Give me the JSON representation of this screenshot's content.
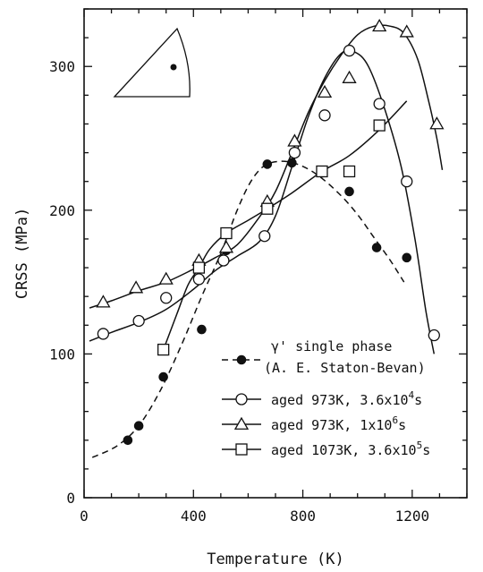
{
  "chart_data": {
    "type": "scatter",
    "xlabel": "Temperature (K)",
    "ylabel": "CRSS (MPa)",
    "xlim": [
      0,
      1400
    ],
    "ylim": [
      0,
      340
    ],
    "x_ticks": [
      0,
      400,
      800,
      1200
    ],
    "y_ticks": [
      0,
      100,
      200,
      300
    ],
    "grid": false,
    "legend_position": "bottom-right",
    "series": [
      {
        "label_main": "γ' single phase",
        "label_sub": "(A. E. Staton-Bevan)",
        "marker": "filled-circle",
        "line": "dashed",
        "points": [
          [
            160,
            40
          ],
          [
            200,
            50
          ],
          [
            290,
            84
          ],
          [
            430,
            117
          ],
          [
            520,
            172
          ],
          [
            670,
            232
          ],
          [
            760,
            233
          ],
          [
            870,
            226
          ],
          [
            970,
            213
          ],
          [
            1070,
            174
          ],
          [
            1180,
            167
          ]
        ],
        "curve": [
          [
            30,
            28
          ],
          [
            120,
            36
          ],
          [
            200,
            50
          ],
          [
            280,
            75
          ],
          [
            360,
            108
          ],
          [
            430,
            140
          ],
          [
            500,
            170
          ],
          [
            560,
            200
          ],
          [
            610,
            220
          ],
          [
            660,
            231
          ],
          [
            720,
            234
          ],
          [
            780,
            232
          ],
          [
            850,
            225
          ],
          [
            930,
            212
          ],
          [
            1000,
            197
          ],
          [
            1060,
            181
          ],
          [
            1120,
            165
          ],
          [
            1170,
            150
          ]
        ]
      },
      {
        "label_pre": "aged 973K, 3.6x10",
        "label_exp": "4",
        "label_post": "s",
        "marker": "open-circle",
        "line": "solid",
        "points": [
          [
            70,
            114
          ],
          [
            200,
            123
          ],
          [
            300,
            139
          ],
          [
            420,
            152
          ],
          [
            510,
            165
          ],
          [
            660,
            182
          ],
          [
            770,
            240
          ],
          [
            880,
            266
          ],
          [
            970,
            311
          ],
          [
            1080,
            274
          ],
          [
            1180,
            220
          ],
          [
            1280,
            113
          ]
        ],
        "curve": [
          [
            20,
            109
          ],
          [
            100,
            115
          ],
          [
            200,
            122
          ],
          [
            300,
            131
          ],
          [
            400,
            145
          ],
          [
            480,
            158
          ],
          [
            560,
            168
          ],
          [
            640,
            178
          ],
          [
            700,
            196
          ],
          [
            760,
            230
          ],
          [
            820,
            265
          ],
          [
            880,
            292
          ],
          [
            940,
            309
          ],
          [
            990,
            310
          ],
          [
            1040,
            300
          ],
          [
            1100,
            270
          ],
          [
            1160,
            230
          ],
          [
            1210,
            180
          ],
          [
            1250,
            130
          ],
          [
            1280,
            100
          ]
        ]
      },
      {
        "label_pre": "aged 973K, 1x10",
        "label_exp": "6",
        "label_post": "s",
        "marker": "open-triangle",
        "line": "solid",
        "points": [
          [
            70,
            136
          ],
          [
            190,
            146
          ],
          [
            300,
            152
          ],
          [
            420,
            165
          ],
          [
            520,
            174
          ],
          [
            670,
            206
          ],
          [
            770,
            248
          ],
          [
            880,
            282
          ],
          [
            970,
            292
          ],
          [
            1080,
            328
          ],
          [
            1180,
            324
          ],
          [
            1290,
            260
          ]
        ],
        "curve": [
          [
            20,
            132
          ],
          [
            100,
            137
          ],
          [
            200,
            144
          ],
          [
            300,
            150
          ],
          [
            400,
            159
          ],
          [
            480,
            167
          ],
          [
            560,
            176
          ],
          [
            640,
            195
          ],
          [
            700,
            213
          ],
          [
            760,
            240
          ],
          [
            820,
            268
          ],
          [
            880,
            290
          ],
          [
            940,
            308
          ],
          [
            1000,
            322
          ],
          [
            1060,
            328
          ],
          [
            1120,
            328
          ],
          [
            1170,
            323
          ],
          [
            1220,
            305
          ],
          [
            1260,
            276
          ],
          [
            1290,
            250
          ],
          [
            1310,
            228
          ]
        ]
      },
      {
        "label_pre": "aged 1073K, 3.6x10",
        "label_exp": "5",
        "label_post": "s",
        "marker": "open-square",
        "line": "solid",
        "points": [
          [
            290,
            103
          ],
          [
            420,
            160
          ],
          [
            520,
            184
          ],
          [
            670,
            201
          ],
          [
            870,
            227
          ],
          [
            970,
            227
          ],
          [
            1080,
            259
          ]
        ],
        "curve": [
          [
            290,
            103
          ],
          [
            340,
            128
          ],
          [
            380,
            148
          ],
          [
            420,
            160
          ],
          [
            460,
            173
          ],
          [
            520,
            184
          ],
          [
            600,
            193
          ],
          [
            670,
            201
          ],
          [
            760,
            212
          ],
          [
            870,
            227
          ],
          [
            970,
            238
          ],
          [
            1080,
            256
          ],
          [
            1180,
            276
          ]
        ]
      }
    ],
    "inset": {
      "type": "stereographic-triangle"
    }
  }
}
